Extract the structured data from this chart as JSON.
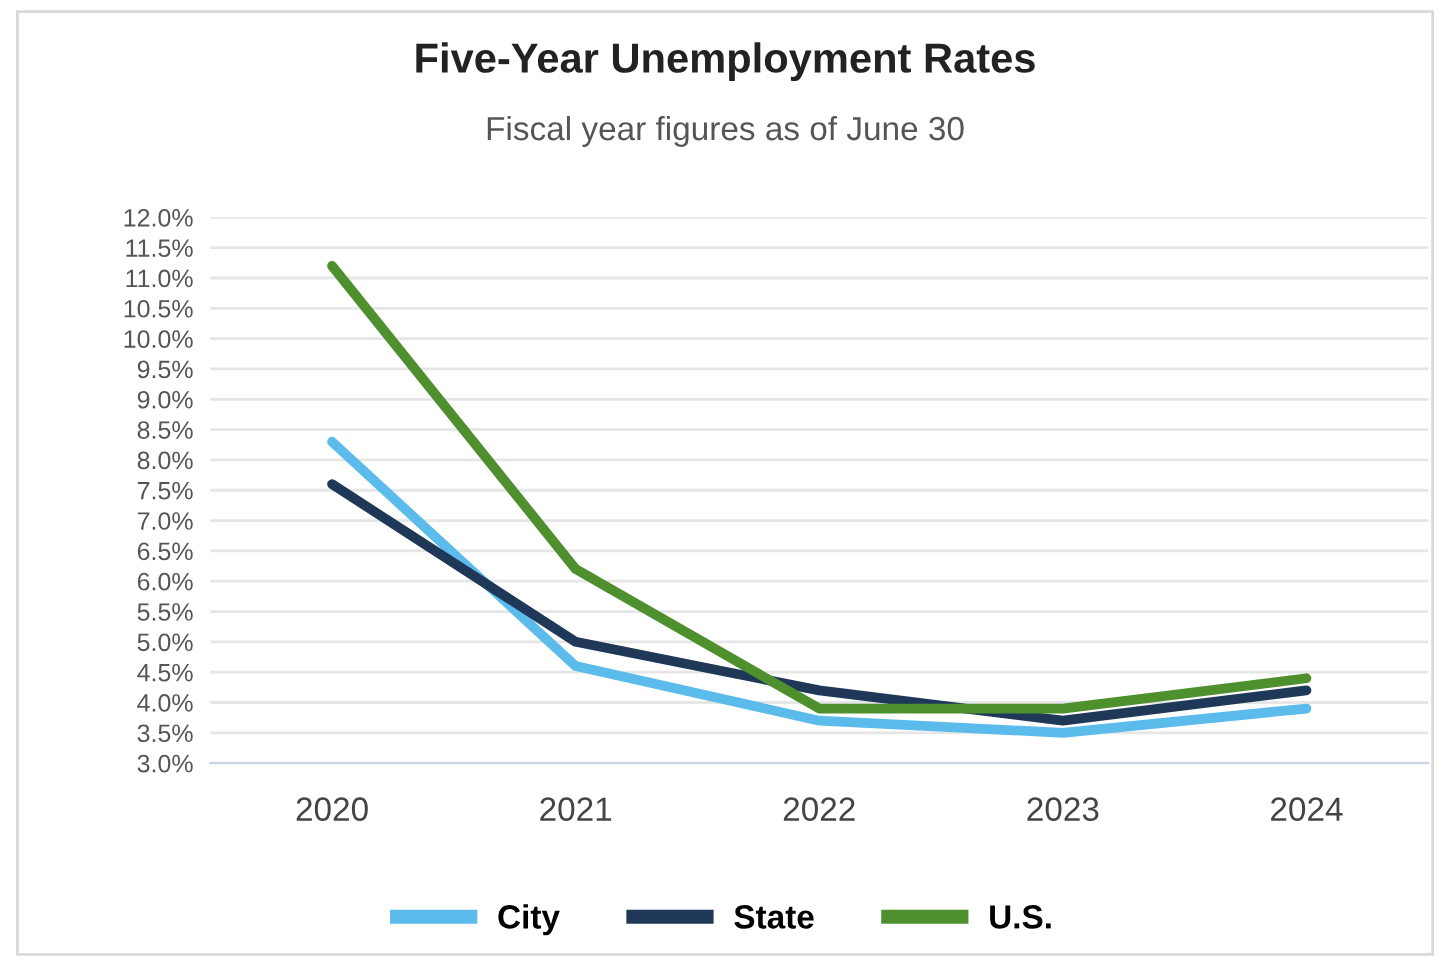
{
  "chart_data": {
    "type": "line",
    "title": "Five-Year Unemployment Rates",
    "subtitle": "Fiscal year figures as of June 30",
    "categories": [
      "2020",
      "2021",
      "2022",
      "2023",
      "2024"
    ],
    "series": [
      {
        "name": "City",
        "color": "#5bbcec",
        "values": [
          8.3,
          4.6,
          3.7,
          3.5,
          3.9
        ]
      },
      {
        "name": "State",
        "color": "#1f3858",
        "values": [
          7.6,
          5.0,
          4.2,
          3.7,
          4.2
        ]
      },
      {
        "name": "U.S.",
        "color": "#4e8f2e",
        "values": [
          11.2,
          6.2,
          3.9,
          3.9,
          4.4
        ]
      }
    ],
    "ylim": [
      3,
      12
    ],
    "yticks": [
      {
        "value": 3,
        "label": "3.0%"
      },
      {
        "value": 3.5,
        "label": "3.5%"
      },
      {
        "value": 4,
        "label": "4.0%"
      },
      {
        "value": 4.5,
        "label": "4.5%"
      },
      {
        "value": 5,
        "label": "5.0%"
      },
      {
        "value": 5.5,
        "label": "5.5%"
      },
      {
        "value": 6,
        "label": "6.0%"
      },
      {
        "value": 6.5,
        "label": "6.5%"
      },
      {
        "value": 7,
        "label": "7.0%"
      },
      {
        "value": 7.5,
        "label": "7.5%"
      },
      {
        "value": 8,
        "label": "8.0%"
      },
      {
        "value": 8.5,
        "label": "8.5%"
      },
      {
        "value": 9,
        "label": "9.0%"
      },
      {
        "value": 9.5,
        "label": "9.5%"
      },
      {
        "value": 10,
        "label": "10.0%"
      },
      {
        "value": 10.5,
        "label": "10.5%"
      },
      {
        "value": 11,
        "label": "11.0%"
      },
      {
        "value": 11.5,
        "label": "11.5%"
      },
      {
        "value": 12,
        "label": "12.0%"
      }
    ],
    "grid": "y",
    "legend": "bottom",
    "marker": "none",
    "line_style": "solid"
  }
}
